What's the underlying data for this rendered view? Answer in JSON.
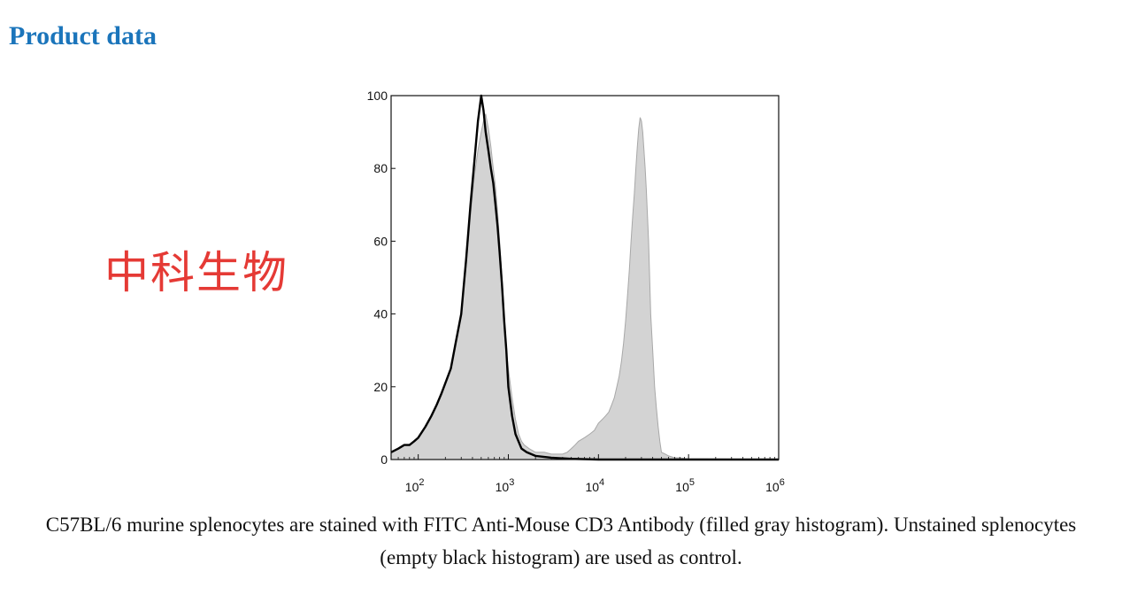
{
  "page": {
    "section_title": "Product data",
    "watermark": "中科生物",
    "caption": "C57BL/6 murine splenocytes are stained with FITC Anti-Mouse CD3 Antibody (filled gray histogram). Unstained splenocytes (empty black histogram) are used as control."
  },
  "colors": {
    "title": "#1b75bb",
    "watermark": "#e53a35",
    "stained_fill": "#d3d3d3",
    "stained_edge": "#a8a8a8",
    "control_line": "#000000"
  },
  "chart_data": {
    "type": "area",
    "title": "",
    "xlabel": "",
    "ylabel": "",
    "x_scale": "log",
    "xlim": [
      50,
      1000000
    ],
    "ylim": [
      0,
      100
    ],
    "y_ticks": [
      0,
      20,
      40,
      60,
      80,
      100
    ],
    "x_ticks": [
      {
        "value": 100,
        "base": "10",
        "exp": "2"
      },
      {
        "value": 1000,
        "base": "10",
        "exp": "3"
      },
      {
        "value": 10000,
        "base": "10",
        "exp": "4"
      },
      {
        "value": 100000,
        "base": "10",
        "exp": "5"
      },
      {
        "value": 1000000,
        "base": "10",
        "exp": "6"
      }
    ],
    "grid": false,
    "legend": "none",
    "series": [
      {
        "style": "filled-gray",
        "x": [
          50,
          60,
          70,
          80,
          90,
          100,
          120,
          140,
          160,
          180,
          200,
          230,
          260,
          300,
          340,
          380,
          420,
          460,
          500,
          530,
          560,
          600,
          640,
          680,
          720,
          760,
          800,
          850,
          900,
          950,
          1000,
          1100,
          1200,
          1300,
          1400,
          1500,
          1700,
          2000,
          2500,
          3000,
          3500,
          4000,
          4500,
          5000,
          5500,
          6000,
          7000,
          8000,
          9000,
          10000,
          11000,
          12000,
          13000,
          14000,
          15000,
          16000,
          17000,
          18000,
          19000,
          20000,
          21000,
          22000,
          23000,
          24000,
          25000,
          26000,
          27000,
          28000,
          29000,
          30000,
          31000,
          32000,
          33000,
          34000,
          35000,
          36000,
          37000,
          38000,
          40000,
          42000,
          44000,
          46000,
          48000,
          50000,
          55000,
          60000,
          70000,
          80000,
          90000,
          100000,
          1000000
        ],
        "y": [
          2,
          3,
          4,
          4,
          5,
          6,
          9,
          12,
          15,
          18,
          21,
          25,
          32,
          40,
          53,
          67,
          78,
          85,
          90,
          93,
          95,
          91,
          86,
          80,
          75,
          68,
          60,
          50,
          40,
          30,
          25,
          17,
          11,
          7,
          5,
          4,
          3,
          2,
          2,
          1.5,
          1.5,
          1.5,
          2,
          3,
          4,
          5,
          6,
          7,
          8,
          10,
          11,
          12,
          13,
          15,
          17,
          20,
          23,
          27,
          32,
          38,
          45,
          52,
          60,
          67,
          73,
          80,
          86,
          91,
          94,
          93,
          90,
          85,
          80,
          74,
          67,
          60,
          50,
          40,
          30,
          20,
          14,
          9,
          5,
          2,
          1.5,
          1,
          0.5,
          0.5,
          0.3,
          0.2,
          0
        ]
      },
      {
        "style": "black-line",
        "x": [
          50,
          60,
          70,
          80,
          90,
          100,
          120,
          140,
          160,
          180,
          200,
          230,
          260,
          300,
          340,
          380,
          420,
          460,
          500,
          530,
          560,
          600,
          640,
          680,
          720,
          760,
          800,
          850,
          900,
          950,
          1000,
          1100,
          1200,
          1400,
          1600,
          2000,
          3000,
          5000,
          10000,
          1000000
        ],
        "y": [
          2,
          3,
          4,
          4,
          5,
          6,
          9,
          12,
          15,
          18,
          21,
          25,
          32,
          40,
          55,
          70,
          82,
          93,
          100,
          96,
          90,
          85,
          80,
          76,
          70,
          64,
          57,
          48,
          38,
          30,
          20,
          12,
          7,
          3,
          2,
          1,
          0.5,
          0.2,
          0,
          0
        ]
      }
    ]
  }
}
